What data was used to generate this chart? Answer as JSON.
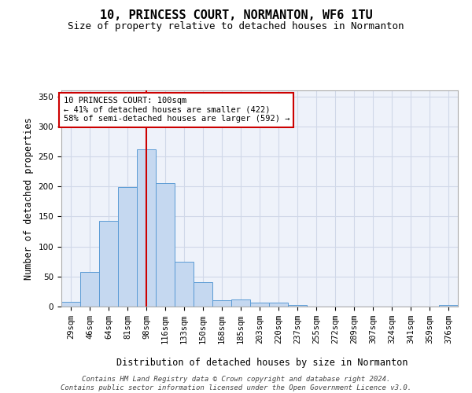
{
  "title_line1": "10, PRINCESS COURT, NORMANTON, WF6 1TU",
  "title_line2": "Size of property relative to detached houses in Normanton",
  "xlabel": "Distribution of detached houses by size in Normanton",
  "ylabel": "Number of detached properties",
  "categories": [
    "29sqm",
    "46sqm",
    "64sqm",
    "81sqm",
    "98sqm",
    "116sqm",
    "133sqm",
    "150sqm",
    "168sqm",
    "185sqm",
    "203sqm",
    "220sqm",
    "237sqm",
    "255sqm",
    "272sqm",
    "289sqm",
    "307sqm",
    "324sqm",
    "341sqm",
    "359sqm",
    "376sqm"
  ],
  "values": [
    8,
    57,
    143,
    199,
    262,
    205,
    74,
    40,
    11,
    12,
    6,
    7,
    3,
    0,
    0,
    0,
    0,
    0,
    0,
    0,
    3
  ],
  "bar_color": "#c5d8f0",
  "bar_edge_color": "#5b9bd5",
  "vline_x_index": 4,
  "vline_color": "#cc0000",
  "annotation_line1": "10 PRINCESS COURT: 100sqm",
  "annotation_line2": "← 41% of detached houses are smaller (422)",
  "annotation_line3": "58% of semi-detached houses are larger (592) →",
  "annotation_box_color": "#ffffff",
  "annotation_box_edge": "#cc0000",
  "ylim": [
    0,
    360
  ],
  "yticks": [
    0,
    50,
    100,
    150,
    200,
    250,
    300,
    350
  ],
  "grid_color": "#d0d8e8",
  "bg_color": "#eef2fa",
  "footer_line1": "Contains HM Land Registry data © Crown copyright and database right 2024.",
  "footer_line2": "Contains public sector information licensed under the Open Government Licence v3.0.",
  "title_fontsize": 11,
  "subtitle_fontsize": 9,
  "axis_label_fontsize": 8.5,
  "tick_fontsize": 7.5,
  "annotation_fontsize": 7.5,
  "footer_fontsize": 6.5
}
